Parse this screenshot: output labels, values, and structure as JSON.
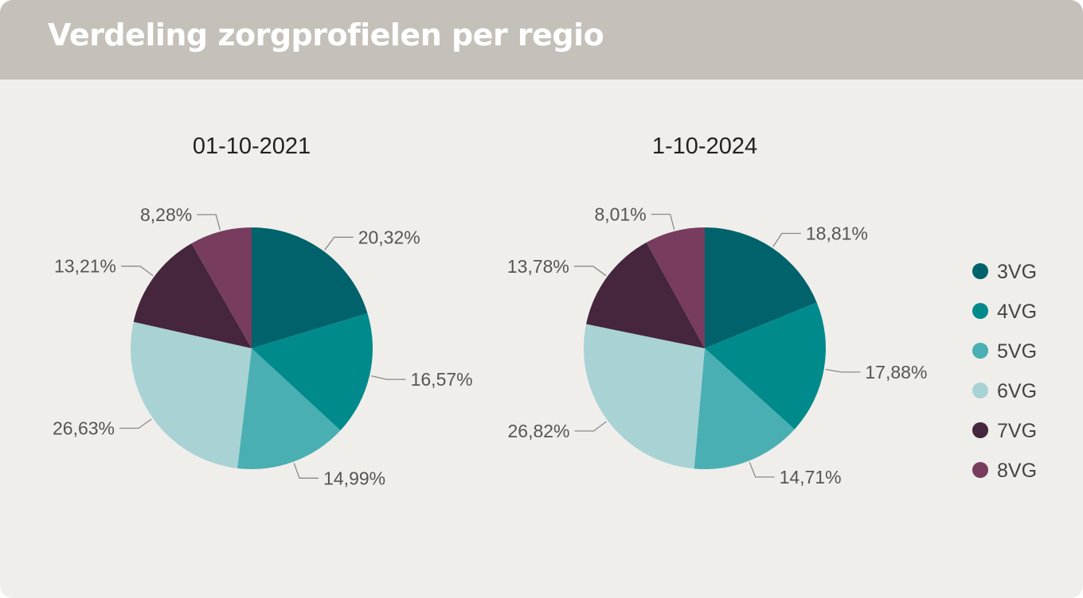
{
  "page": {
    "title": "Verdeling zorgprofielen per regio"
  },
  "colors": {
    "3VG": "#00626b",
    "4VG": "#008a8b",
    "5VG": "#4aafb2",
    "6VG": "#a9d2d5",
    "7VG": "#45263c",
    "8VG": "#783c5f"
  },
  "chart_data": [
    {
      "type": "pie",
      "title": "01-10-2021",
      "categories": [
        "3VG",
        "4VG",
        "5VG",
        "6VG",
        "7VG",
        "8VG"
      ],
      "values": [
        20.32,
        16.57,
        14.99,
        26.63,
        13.21,
        8.28
      ],
      "labels": [
        "20,32%",
        "16,57%",
        "14,99%",
        "26,63%",
        "13,21%",
        "8,28%"
      ],
      "legend": "none"
    },
    {
      "type": "pie",
      "title": "1-10-2024",
      "categories": [
        "3VG",
        "4VG",
        "5VG",
        "6VG",
        "7VG",
        "8VG"
      ],
      "values": [
        18.81,
        17.88,
        14.71,
        26.82,
        13.78,
        8.01
      ],
      "labels": [
        "18,81%",
        "17,88%",
        "14,71%",
        "26,82%",
        "13,78%",
        "8,01%"
      ],
      "legend": "right"
    }
  ]
}
